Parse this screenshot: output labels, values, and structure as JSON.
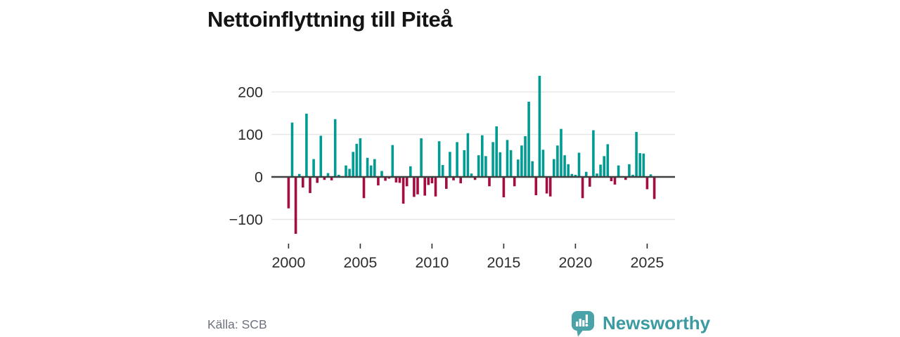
{
  "title": "Nettoinflyttning till Piteå",
  "footer": {
    "source": "Källa: SCB",
    "brand": "Newsworthy"
  },
  "colors": {
    "positive": "#009c93",
    "negative": "#a50d42",
    "grid": "#e8e8e8",
    "zero_line": "#3f3f3f",
    "axis_text": "#2d2d2d",
    "title_text": "#141414",
    "source_text": "#6c717d",
    "brand": "#3b9ba0",
    "brand_icon": "#4aa3a8"
  },
  "chart_data": {
    "type": "bar",
    "title": "Nettoinflyttning till Piteå",
    "x_unit": "quarter",
    "start_period": "2000 Q1",
    "end_period": "2025 Q3",
    "y_ticks": [
      200,
      100,
      0,
      -100
    ],
    "x_ticks": [
      2000,
      2005,
      2010,
      2015,
      2020,
      2025
    ],
    "ylim": [
      -150,
      250
    ],
    "grid": true,
    "legend": "none",
    "series": [
      {
        "name": "Nettoinflyttning",
        "values": [
          -74,
          128,
          -134,
          7,
          -25,
          149,
          -38,
          42,
          -14,
          97,
          -7,
          9,
          -8,
          136,
          5,
          2,
          27,
          19,
          59,
          78,
          91,
          -50,
          45,
          27,
          42,
          -20,
          14,
          -9,
          -4,
          75,
          -13,
          -14,
          -63,
          -22,
          25,
          -47,
          -41,
          91,
          -44,
          -19,
          -15,
          -46,
          84,
          28,
          -28,
          59,
          -8,
          82,
          -15,
          63,
          103,
          8,
          -7,
          51,
          98,
          49,
          -22,
          82,
          119,
          58,
          -48,
          87,
          63,
          -22,
          41,
          74,
          96,
          177,
          37,
          -43,
          238,
          64,
          -39,
          -46,
          42,
          74,
          113,
          51,
          30,
          7,
          5,
          57,
          -50,
          12,
          -23,
          110,
          8,
          29,
          49,
          77,
          -10,
          -18,
          27,
          2,
          -7,
          30,
          5,
          106,
          56,
          55,
          -29,
          6,
          -52
        ]
      }
    ]
  }
}
